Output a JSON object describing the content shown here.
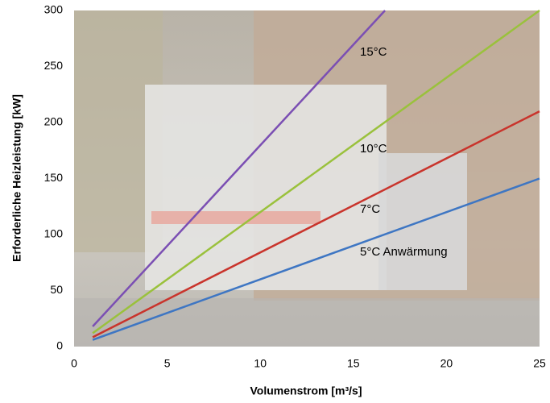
{
  "chart_data": {
    "type": "line",
    "x_label": "Volumenstrom [m³/s]",
    "y_label": "Erforderliche Heizleistung [kW]",
    "xlim": [
      0,
      25
    ],
    "xticks": [
      0,
      5,
      10,
      15,
      20,
      25
    ],
    "ylim": [
      0,
      300
    ],
    "yticks": [
      0,
      50,
      100,
      150,
      200,
      250,
      300
    ],
    "grid": false,
    "series": [
      {
        "name": "15°C",
        "color": "#7b4fb3",
        "x": [
          1,
          16.7
        ],
        "values": [
          18,
          300
        ]
      },
      {
        "name": "10°C",
        "color": "#9ac13c",
        "x": [
          1,
          25
        ],
        "values": [
          12,
          300
        ]
      },
      {
        "name": "7°C",
        "color": "#c9342c",
        "x": [
          1,
          25
        ],
        "values": [
          8.4,
          210
        ]
      },
      {
        "name": "5°C Anwärmung",
        "color": "#3e76c3",
        "x": [
          1,
          25
        ],
        "values": [
          6,
          150
        ]
      }
    ]
  }
}
